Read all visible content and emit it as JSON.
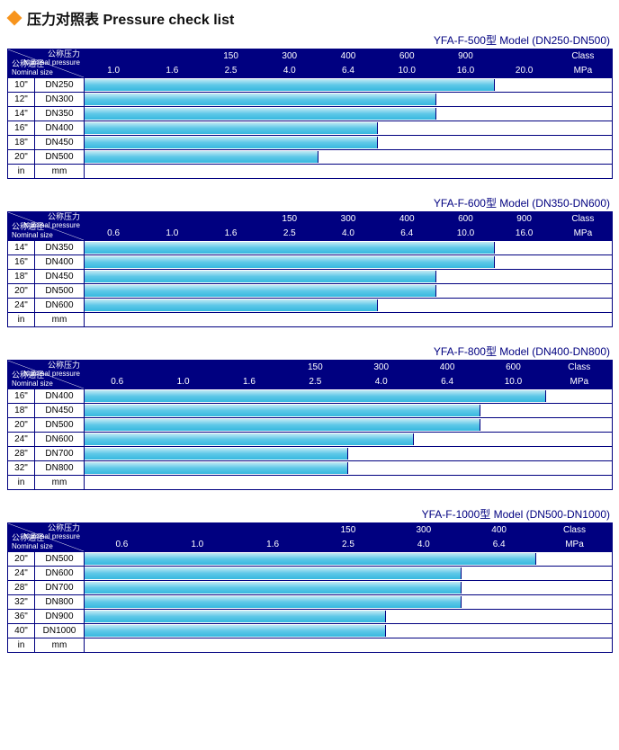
{
  "title_cn": "压力对照表",
  "title_en": "Pressure check list",
  "diamond_color": "#f7941d",
  "header_bg": "#000080",
  "header_fg": "#ffffff",
  "bar_gradient_top": "#c2eaf4",
  "bar_gradient_mid": "#5ec8e8",
  "bar_gradient_bot": "#37b8df",
  "border_color": "#000080",
  "np_label_cn": "公称压力",
  "np_label_en": "Nominal pressure",
  "ns_label_cn": "公称通径",
  "ns_label_en": "Nominal size",
  "in_label": "in",
  "mm_label": "mm",
  "class_label": "Class",
  "mpa_label": "MPa",
  "tables": [
    {
      "model_caption": "YFA-F-500型  Model (DN250-DN500)",
      "class_row": [
        "",
        "",
        "150",
        "300",
        "400",
        "600",
        "900",
        ""
      ],
      "mpa_row": [
        "1.0",
        "1.6",
        "2.5",
        "4.0",
        "6.4",
        "10.0",
        "16.0",
        "20.0"
      ],
      "nominal_col_in": 30,
      "nominal_col_mm": 55,
      "data_cols": 8,
      "rows": [
        {
          "in": "10\"",
          "mm": "DN250",
          "bar_cols": 7
        },
        {
          "in": "12\"",
          "mm": "DN300",
          "bar_cols": 6
        },
        {
          "in": "14\"",
          "mm": "DN350",
          "bar_cols": 6
        },
        {
          "in": "16\"",
          "mm": "DN400",
          "bar_cols": 5
        },
        {
          "in": "18\"",
          "mm": "DN450",
          "bar_cols": 5
        },
        {
          "in": "20\"",
          "mm": "DN500",
          "bar_cols": 4
        }
      ]
    },
    {
      "model_caption": "YFA-F-600型  Model (DN350-DN600)",
      "class_row": [
        "",
        "",
        "",
        "150",
        "300",
        "400",
        "600",
        "900"
      ],
      "mpa_row": [
        "0.6",
        "1.0",
        "1.6",
        "2.5",
        "4.0",
        "6.4",
        "10.0",
        "16.0"
      ],
      "nominal_col_in": 30,
      "nominal_col_mm": 55,
      "data_cols": 8,
      "rows": [
        {
          "in": "14\"",
          "mm": "DN350",
          "bar_cols": 7
        },
        {
          "in": "16\"",
          "mm": "DN400",
          "bar_cols": 7
        },
        {
          "in": "18\"",
          "mm": "DN450",
          "bar_cols": 6
        },
        {
          "in": "20\"",
          "mm": "DN500",
          "bar_cols": 6
        },
        {
          "in": "24\"",
          "mm": "DN600",
          "bar_cols": 5
        }
      ]
    },
    {
      "model_caption": "YFA-F-800型  Model (DN400-DN800)",
      "class_row": [
        "",
        "",
        "",
        "150",
        "300",
        "400",
        "600"
      ],
      "mpa_row": [
        "0.6",
        "1.0",
        "1.6",
        "2.5",
        "4.0",
        "6.4",
        "10.0"
      ],
      "nominal_col_in": 30,
      "nominal_col_mm": 55,
      "data_cols": 7,
      "rows": [
        {
          "in": "16\"",
          "mm": "DN400",
          "bar_cols": 7
        },
        {
          "in": "18\"",
          "mm": "DN450",
          "bar_cols": 6
        },
        {
          "in": "20\"",
          "mm": "DN500",
          "bar_cols": 6
        },
        {
          "in": "24\"",
          "mm": "DN600",
          "bar_cols": 5
        },
        {
          "in": "28\"",
          "mm": "DN700",
          "bar_cols": 4
        },
        {
          "in": "32\"",
          "mm": "DN800",
          "bar_cols": 4
        }
      ]
    },
    {
      "model_caption": "YFA-F-1000型  Model (DN500-DN1000)",
      "class_row": [
        "",
        "",
        "",
        "150",
        "300",
        "400"
      ],
      "mpa_row": [
        "0.6",
        "1.0",
        "1.6",
        "2.5",
        "4.0",
        "6.4"
      ],
      "nominal_col_in": 30,
      "nominal_col_mm": 55,
      "data_cols": 6,
      "rows": [
        {
          "in": "20\"",
          "mm": "DN500",
          "bar_cols": 6
        },
        {
          "in": "24\"",
          "mm": "DN600",
          "bar_cols": 5
        },
        {
          "in": "28\"",
          "mm": "DN700",
          "bar_cols": 5
        },
        {
          "in": "32\"",
          "mm": "DN800",
          "bar_cols": 5
        },
        {
          "in": "36\"",
          "mm": "DN900",
          "bar_cols": 4
        },
        {
          "in": "40\"",
          "mm": "DN1000",
          "bar_cols": 4
        }
      ]
    }
  ]
}
